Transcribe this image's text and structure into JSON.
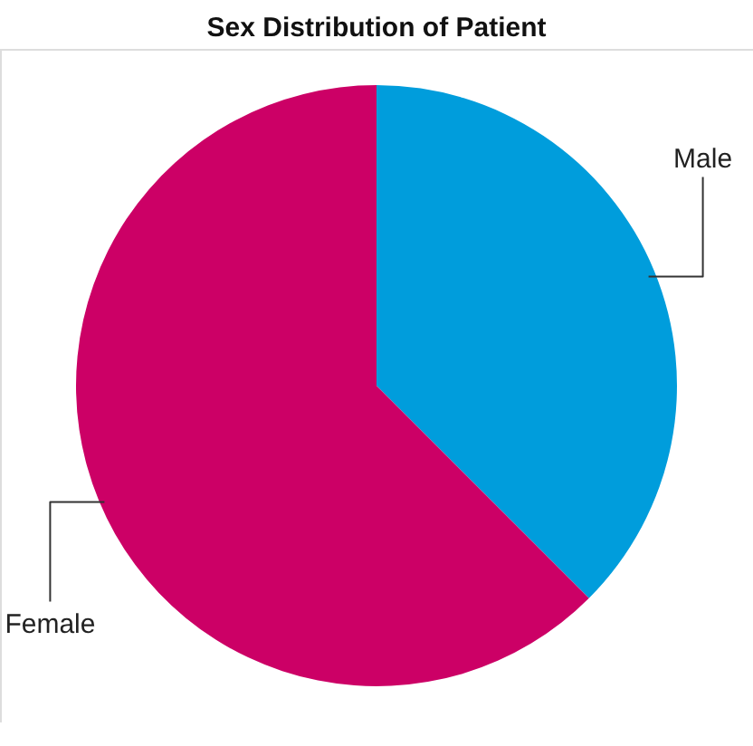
{
  "chart_data": {
    "type": "pie",
    "title": "Sex Distribution of Patient",
    "categories": [
      "Male",
      "Female"
    ],
    "values": [
      37.5,
      62.5
    ],
    "colors": [
      "#009ddc",
      "#cc0066"
    ],
    "legend": false
  }
}
